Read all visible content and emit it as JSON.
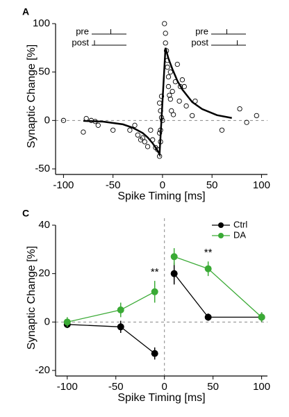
{
  "chart_data": [
    {
      "type": "scatter",
      "panel_label": "A",
      "xlabel": "Spike Timing [ms]",
      "ylabel": "Synaptic Change [%]",
      "xlim": [
        -108,
        106
      ],
      "ylim": [
        -50,
        100
      ],
      "xticks": [
        -100,
        -50,
        0,
        50,
        100
      ],
      "yticks": [
        -50,
        0,
        50,
        100
      ],
      "insets": [
        [
          "pre",
          "post"
        ],
        [
          "pre",
          "post"
        ]
      ],
      "series": [
        {
          "mode": "markers",
          "color": "#000000",
          "x": [
            -100,
            -80,
            -77,
            -72,
            -68,
            -65,
            -50,
            -33,
            -28,
            -25,
            -22,
            -20,
            -18,
            -15,
            -12,
            -10,
            -7,
            -5,
            -3,
            -2,
            -3,
            -2,
            -1,
            0,
            -2,
            -3,
            -1,
            2,
            3,
            3,
            4,
            5,
            5,
            6,
            6,
            7,
            8,
            8,
            9,
            10,
            11,
            13,
            15,
            17,
            18,
            20,
            22,
            24,
            30,
            33,
            60,
            78,
            85,
            95
          ],
          "values": [
            0,
            -12,
            2,
            0,
            -1,
            -5,
            -10,
            -10,
            -5,
            -15,
            -20,
            -18,
            -22,
            -27,
            -10,
            -20,
            -28,
            -30,
            -37,
            -22,
            -13,
            -10,
            3,
            0,
            10,
            18,
            25,
            100,
            90,
            80,
            72,
            62,
            55,
            45,
            35,
            26,
            22,
            50,
            10,
            30,
            6,
            40,
            58,
            20,
            35,
            42,
            35,
            15,
            5,
            20,
            -10,
            12,
            -2,
            5
          ]
        },
        {
          "mode": "line",
          "color": "#000000",
          "x": [
            -80,
            -60,
            -40,
            -30,
            -20,
            -15,
            -10,
            -6,
            -3,
            3,
            6,
            10,
            15,
            20,
            30,
            40,
            55,
            70
          ],
          "values": [
            -0.4,
            -1.2,
            -4,
            -7.5,
            -13,
            -17.5,
            -23.5,
            -29.5,
            -35,
            75,
            64,
            53,
            41,
            32,
            19,
            11.8,
            5.5,
            2.6
          ]
        }
      ]
    },
    {
      "type": "line",
      "panel_label": "C",
      "xlabel": "Spike Timing [ms]",
      "ylabel": "Synaptic Change [%]",
      "xlim": [
        -112,
        106
      ],
      "ylim": [
        -20,
        40
      ],
      "xticks": [
        -100,
        -50,
        0,
        50,
        100
      ],
      "yticks": [
        -20,
        0,
        20,
        40
      ],
      "legend": "top-right",
      "annotations": [
        {
          "text": "**",
          "x": -10
        },
        {
          "text": "**",
          "x": 45
        }
      ],
      "series": [
        {
          "name": "Ctrl",
          "color": "#000000",
          "x": [
            -100,
            -45,
            -10,
            0,
            10,
            45,
            100
          ],
          "values": [
            -1,
            -2,
            -13,
            null,
            20,
            2,
            2
          ],
          "errors": [
            1.5,
            2.5,
            2.5,
            null,
            4.5,
            1.5,
            2
          ]
        },
        {
          "name": "DA",
          "color": "#3aaa35",
          "x": [
            -100,
            -45,
            -10,
            0,
            10,
            45,
            100
          ],
          "values": [
            0,
            5,
            12.5,
            null,
            27,
            22,
            2
          ],
          "errors": [
            2,
            3,
            4.5,
            null,
            3.5,
            3,
            2
          ]
        }
      ]
    }
  ]
}
